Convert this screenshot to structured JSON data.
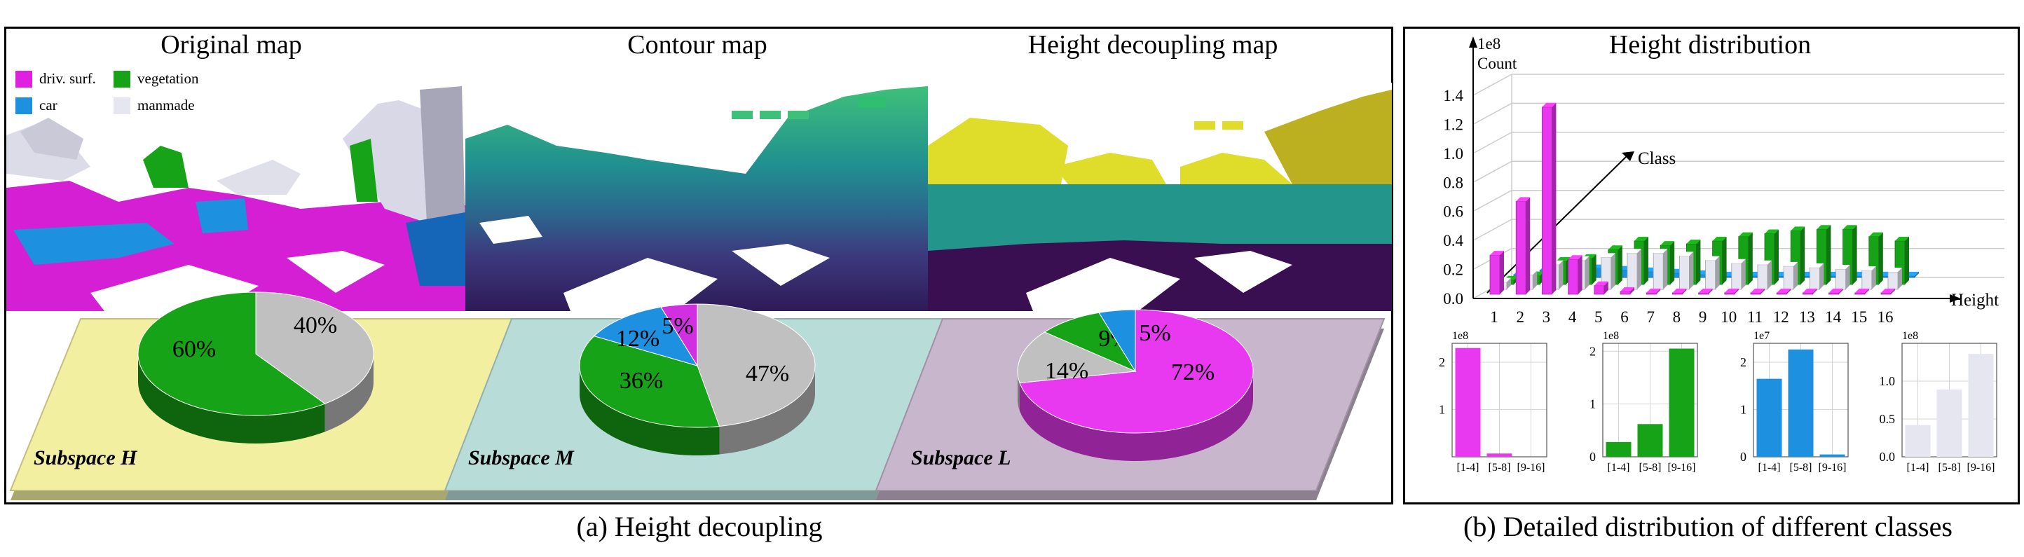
{
  "panel_a": {
    "titles": [
      "Original map",
      "Contour map",
      "Height decoupling map"
    ],
    "legend": [
      {
        "label": "driv. surf.",
        "color": "#e020e0"
      },
      {
        "label": "vegetation",
        "color": "#17a317"
      },
      {
        "label": "car",
        "color": "#1e90e0"
      },
      {
        "label": "manmade",
        "color": "#e6e6f0"
      }
    ],
    "caption": "(a) Height decoupling"
  },
  "panel_b": {
    "title": "Height distribution",
    "caption": "(b) Detailed distribution of different classes"
  },
  "chart_data": [
    {
      "type": "pie",
      "subspace": "Subspace H",
      "slices": [
        {
          "label": "60%",
          "value": 60,
          "color": "#17a317"
        },
        {
          "label": "40%",
          "value": 40,
          "color": "#c0c0c0"
        }
      ],
      "base_color": "#f2efa0"
    },
    {
      "type": "pie",
      "subspace": "Subspace M",
      "slices": [
        {
          "label": "47%",
          "value": 47,
          "color": "#c0c0c0"
        },
        {
          "label": "36%",
          "value": 36,
          "color": "#17a317"
        },
        {
          "label": "12%",
          "value": 12,
          "color": "#1e90e0"
        },
        {
          "label": "5%",
          "value": 5,
          "color": "#d030e0"
        }
      ],
      "base_color": "#b8dcd8"
    },
    {
      "type": "pie",
      "subspace": "Subspace L",
      "slices": [
        {
          "label": "72%",
          "value": 72,
          "color": "#e838f0"
        },
        {
          "label": "14%",
          "value": 14,
          "color": "#c0c0c0"
        },
        {
          "label": "9%",
          "value": 9,
          "color": "#17a317"
        },
        {
          "label": "5%",
          "value": 5,
          "color": "#1e90e0"
        }
      ],
      "base_color": "#c8b6cc"
    },
    {
      "type": "bar",
      "title": "Height distribution",
      "xlabel": "Height",
      "ylabel": "Count",
      "zlabel": "Class",
      "exponent": "1e8",
      "categories": [
        "1",
        "2",
        "3",
        "4",
        "5",
        "6",
        "7",
        "8",
        "9",
        "10",
        "11",
        "12",
        "13",
        "14",
        "15",
        "16"
      ],
      "yticks": [
        "0.0",
        "0.2",
        "0.4",
        "0.6",
        "0.8",
        "1.0",
        "1.2",
        "1.4"
      ],
      "ylim": [
        0,
        1.4
      ],
      "series": [
        {
          "name": "driv. surf.",
          "color": "#e838f0",
          "values": [
            0.27,
            0.64,
            1.29,
            0.24,
            0.06,
            0.02,
            0.01,
            0.01,
            0.01,
            0.01,
            0.01,
            0.01,
            0.01,
            0.01,
            0.01,
            0.01
          ]
        },
        {
          "name": "vegetation",
          "color": "#17a317",
          "values": [
            0.03,
            0.06,
            0.16,
            0.18,
            0.24,
            0.3,
            0.27,
            0.28,
            0.3,
            0.33,
            0.35,
            0.37,
            0.38,
            0.38,
            0.33,
            0.3
          ]
        },
        {
          "name": "manmade",
          "color": "#e6e6f0",
          "values": [
            0.05,
            0.1,
            0.17,
            0.2,
            0.22,
            0.25,
            0.25,
            0.23,
            0.2,
            0.18,
            0.17,
            0.16,
            0.15,
            0.14,
            0.13,
            0.12
          ]
        },
        {
          "name": "car",
          "color": "#1e90e0",
          "values": [
            0.02,
            0.05,
            0.06,
            0.06,
            0.05,
            0.04,
            0.03,
            0.02,
            0.01,
            0.01,
            0.01,
            0.01,
            0.01,
            0.01,
            0.01,
            0.01
          ]
        }
      ]
    },
    {
      "type": "bar",
      "class": "driv. surf.",
      "exponent": "1e8",
      "categories": [
        "[1-4]",
        "[5-8]",
        "[9-16]"
      ],
      "values": [
        2.3,
        0.07,
        0.0
      ],
      "ylim": [
        0,
        2.4
      ],
      "yticks": [
        {
          "v": 1,
          "label": "1"
        },
        {
          "v": 2,
          "label": "2"
        }
      ],
      "color": "#e838f0"
    },
    {
      "type": "bar",
      "class": "vegetation",
      "exponent": "1e8",
      "categories": [
        "[1-4]",
        "[5-8]",
        "[9-16]"
      ],
      "values": [
        0.28,
        0.62,
        2.05
      ],
      "ylim": [
        0,
        2.15
      ],
      "yticks": [
        {
          "v": 0,
          "label": "0"
        },
        {
          "v": 1,
          "label": "1"
        },
        {
          "v": 2,
          "label": "2"
        }
      ],
      "color": "#17a317"
    },
    {
      "type": "bar",
      "class": "car",
      "exponent": "1e7",
      "categories": [
        "[1-4]",
        "[5-8]",
        "[9-16]"
      ],
      "values": [
        1.65,
        2.27,
        0.05
      ],
      "ylim": [
        0,
        2.4
      ],
      "yticks": [
        {
          "v": 0,
          "label": "0"
        },
        {
          "v": 1,
          "label": "1"
        },
        {
          "v": 2,
          "label": "2"
        }
      ],
      "color": "#1e90e0"
    },
    {
      "type": "bar",
      "class": "manmade",
      "exponent": "1e8",
      "categories": [
        "[1-4]",
        "[5-8]",
        "[9-16]"
      ],
      "values": [
        0.42,
        0.89,
        1.36
      ],
      "ylim": [
        0,
        1.5
      ],
      "yticks": [
        {
          "v": 0,
          "label": "0.0"
        },
        {
          "v": 0.5,
          "label": "0.5"
        },
        {
          "v": 1.0,
          "label": "1.0"
        }
      ],
      "color": "#e6e6f0"
    }
  ]
}
